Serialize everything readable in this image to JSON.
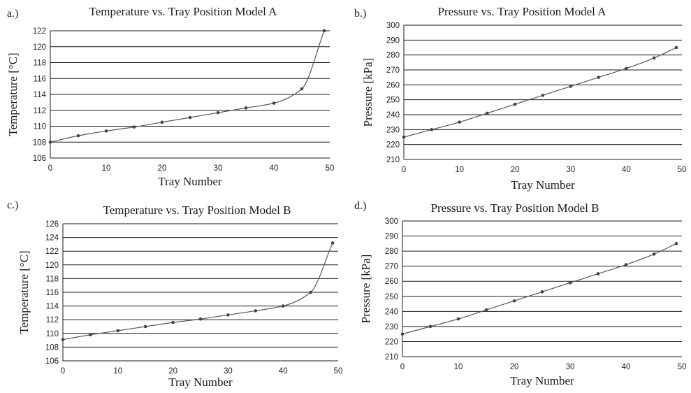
{
  "chart_data": [
    {
      "type": "line",
      "panel": "a.)",
      "title": "Temperature vs. Tray Position Model A",
      "xlabel": "Tray Number",
      "ylabel": "Temperature [°C]",
      "xlim": [
        0,
        50
      ],
      "ylim": [
        106,
        122
      ],
      "xticks": [
        0,
        10,
        20,
        30,
        40,
        50
      ],
      "yticks": [
        106,
        108,
        110,
        112,
        114,
        116,
        118,
        120,
        122
      ],
      "grid": "horizontal",
      "series": [
        {
          "x": [
            0,
            5,
            10,
            15,
            20,
            25,
            30,
            35,
            40,
            45,
            49
          ],
          "y": [
            108.0,
            108.8,
            109.4,
            109.9,
            110.5,
            111.1,
            111.7,
            112.3,
            112.9,
            114.7,
            122.0
          ]
        }
      ]
    },
    {
      "type": "line",
      "panel": "b.)",
      "title": "Pressure vs. Tray Position Model A",
      "xlabel": "Tray Number",
      "ylabel": "Pressure [kPa]",
      "xlim": [
        0,
        50
      ],
      "ylim": [
        210,
        300
      ],
      "xticks": [
        0,
        10,
        20,
        30,
        40,
        50
      ],
      "yticks": [
        210,
        220,
        230,
        240,
        250,
        260,
        270,
        280,
        290,
        300
      ],
      "grid": "horizontal",
      "series": [
        {
          "x": [
            0,
            5,
            10,
            15,
            20,
            25,
            30,
            35,
            40,
            45,
            49
          ],
          "y": [
            225,
            230,
            235,
            241,
            247,
            253,
            259,
            265,
            271,
            278,
            285
          ]
        }
      ]
    },
    {
      "type": "line",
      "panel": "c.)",
      "title": "Temperature vs. Tray Position Model B",
      "xlabel": "Tray Number",
      "ylabel": "Temperature [°C]",
      "xlim": [
        0,
        50
      ],
      "ylim": [
        106,
        126
      ],
      "xticks": [
        0,
        10,
        20,
        30,
        40,
        50
      ],
      "yticks": [
        106,
        108,
        110,
        112,
        114,
        116,
        118,
        120,
        122,
        124,
        126
      ],
      "grid": "horizontal",
      "series": [
        {
          "x": [
            0,
            5,
            10,
            15,
            20,
            25,
            30,
            35,
            40,
            45,
            49
          ],
          "y": [
            109.1,
            109.8,
            110.4,
            111.0,
            111.6,
            112.1,
            112.7,
            113.3,
            114.0,
            116.0,
            123.2
          ]
        }
      ]
    },
    {
      "type": "line",
      "panel": "d.)",
      "title": "Pressure vs. Tray Position Model B",
      "xlabel": "Tray Number",
      "ylabel": "Pressure [kPa]",
      "xlim": [
        0,
        50
      ],
      "ylim": [
        210,
        300
      ],
      "xticks": [
        0,
        10,
        20,
        30,
        40,
        50
      ],
      "yticks": [
        210,
        220,
        230,
        240,
        250,
        260,
        270,
        280,
        290,
        300
      ],
      "grid": "horizontal",
      "series": [
        {
          "x": [
            0,
            5,
            10,
            15,
            20,
            25,
            30,
            35,
            40,
            45,
            49
          ],
          "y": [
            225,
            230,
            235,
            241,
            247,
            253,
            259,
            265,
            271,
            278,
            285
          ]
        }
      ]
    }
  ]
}
